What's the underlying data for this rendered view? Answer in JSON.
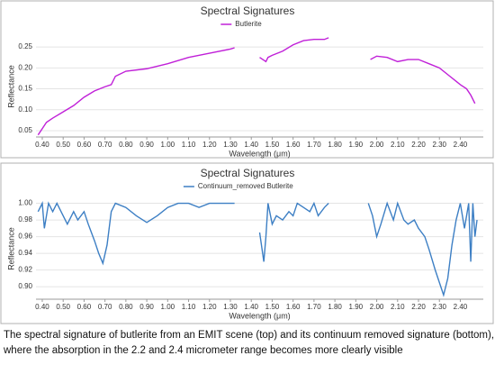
{
  "chart_data": [
    {
      "type": "line",
      "title": "Spectral Signatures",
      "x_label": "Wavelength (μm)",
      "y_label": "Reflectance",
      "legend": "top",
      "xlim": [
        0.37,
        2.51
      ],
      "ylim": [
        0.035,
        0.276
      ],
      "grid": true,
      "xticks": [
        {
          "value": 0.4,
          "label": "0.40"
        },
        {
          "value": 0.5,
          "label": "0.50"
        },
        {
          "value": 0.6,
          "label": "0.60"
        },
        {
          "value": 0.7,
          "label": "0.70"
        },
        {
          "value": 0.8,
          "label": "0.80"
        },
        {
          "value": 0.9,
          "label": "0.90"
        },
        {
          "value": 1.0,
          "label": "1.00"
        },
        {
          "value": 1.1,
          "label": "1.10"
        },
        {
          "value": 1.2,
          "label": "1.20"
        },
        {
          "value": 1.3,
          "label": "1.30"
        },
        {
          "value": 1.4,
          "label": "1.40"
        },
        {
          "value": 1.5,
          "label": "1.50"
        },
        {
          "value": 1.6,
          "label": "1.60"
        },
        {
          "value": 1.7,
          "label": "1.70"
        },
        {
          "value": 1.8,
          "label": "1.80"
        },
        {
          "value": 1.9,
          "label": "1.90"
        },
        {
          "value": 2.0,
          "label": "2.00"
        },
        {
          "value": 2.1,
          "label": "2.10"
        },
        {
          "value": 2.2,
          "label": "2.20"
        },
        {
          "value": 2.3,
          "label": "2.30"
        },
        {
          "value": 2.4,
          "label": "2.40"
        }
      ],
      "yticks": [
        {
          "value": 0.05,
          "label": "0.05"
        },
        {
          "value": 0.1,
          "label": "0.10"
        },
        {
          "value": 0.15,
          "label": "0.15"
        },
        {
          "value": 0.2,
          "label": "0.20"
        },
        {
          "value": 0.25,
          "label": "0.25"
        }
      ],
      "x": [
        0.38,
        0.4,
        0.42,
        0.45,
        0.5,
        0.55,
        0.6,
        0.65,
        0.7,
        0.73,
        0.75,
        0.8,
        0.9,
        1.0,
        1.1,
        1.2,
        1.3,
        1.32,
        1.38,
        1.44,
        1.47,
        1.48,
        1.5,
        1.55,
        1.6,
        1.65,
        1.7,
        1.75,
        1.77,
        1.87,
        1.97,
        2.0,
        2.05,
        2.1,
        2.15,
        2.2,
        2.25,
        2.3,
        2.35,
        2.4,
        2.43,
        2.45,
        2.47
      ],
      "series": [
        {
          "name": "Butlerite",
          "color": "#c020d8",
          "values": [
            0.04,
            0.055,
            0.07,
            0.08,
            0.095,
            0.11,
            0.13,
            0.145,
            0.155,
            0.16,
            0.18,
            0.192,
            0.198,
            0.21,
            0.225,
            0.235,
            0.245,
            0.248,
            null,
            0.225,
            0.215,
            0.225,
            0.23,
            0.24,
            0.255,
            0.265,
            0.268,
            0.268,
            0.272,
            null,
            0.22,
            0.228,
            0.225,
            0.215,
            0.22,
            0.22,
            0.21,
            0.2,
            0.18,
            0.16,
            0.15,
            0.135,
            0.115
          ]
        }
      ]
    },
    {
      "type": "line",
      "title": "Spectral Signatures",
      "x_label": "Wavelength (μm)",
      "y_label": "Reflectance",
      "legend": "top",
      "xlim": [
        0.37,
        2.51
      ],
      "ylim": [
        0.885,
        1.006
      ],
      "grid": true,
      "xticks": [
        {
          "value": 0.4,
          "label": "0.40"
        },
        {
          "value": 0.5,
          "label": "0.50"
        },
        {
          "value": 0.6,
          "label": "0.60"
        },
        {
          "value": 0.7,
          "label": "0.70"
        },
        {
          "value": 0.8,
          "label": "0.80"
        },
        {
          "value": 0.9,
          "label": "0.90"
        },
        {
          "value": 1.0,
          "label": "1.00"
        },
        {
          "value": 1.1,
          "label": "1.10"
        },
        {
          "value": 1.2,
          "label": "1.20"
        },
        {
          "value": 1.3,
          "label": "1.30"
        },
        {
          "value": 1.4,
          "label": "1.40"
        },
        {
          "value": 1.5,
          "label": "1.50"
        },
        {
          "value": 1.6,
          "label": "1.60"
        },
        {
          "value": 1.7,
          "label": "1.70"
        },
        {
          "value": 1.8,
          "label": "1.80"
        },
        {
          "value": 1.9,
          "label": "1.90"
        },
        {
          "value": 2.0,
          "label": "2.00"
        },
        {
          "value": 2.1,
          "label": "2.10"
        },
        {
          "value": 2.2,
          "label": "2.20"
        },
        {
          "value": 2.3,
          "label": "2.30"
        },
        {
          "value": 2.4,
          "label": "2.40"
        }
      ],
      "yticks": [
        {
          "value": 0.9,
          "label": "0.90"
        },
        {
          "value": 0.92,
          "label": "0.92"
        },
        {
          "value": 0.94,
          "label": "0.94"
        },
        {
          "value": 0.96,
          "label": "0.96"
        },
        {
          "value": 0.98,
          "label": "0.98"
        },
        {
          "value": 1.0,
          "label": "1.00"
        }
      ],
      "x": [
        0.38,
        0.4,
        0.41,
        0.43,
        0.45,
        0.47,
        0.5,
        0.52,
        0.55,
        0.57,
        0.6,
        0.62,
        0.65,
        0.67,
        0.69,
        0.71,
        0.73,
        0.75,
        0.8,
        0.85,
        0.9,
        0.95,
        1.0,
        1.05,
        1.1,
        1.15,
        1.2,
        1.25,
        1.32,
        1.38,
        1.44,
        1.46,
        1.47,
        1.48,
        1.5,
        1.52,
        1.55,
        1.58,
        1.6,
        1.62,
        1.65,
        1.68,
        1.7,
        1.72,
        1.75,
        1.77,
        1.87,
        1.96,
        1.98,
        2.0,
        2.02,
        2.05,
        2.08,
        2.1,
        2.13,
        2.15,
        2.18,
        2.2,
        2.23,
        2.25,
        2.28,
        2.3,
        2.32,
        2.34,
        2.36,
        2.38,
        2.4,
        2.42,
        2.44,
        2.45,
        2.46,
        2.47,
        2.48
      ],
      "series": [
        {
          "name": "Continuum_removed Butlerite",
          "color": "#3d7fc4",
          "values": [
            0.99,
            1.0,
            0.97,
            1.0,
            0.99,
            1.0,
            0.985,
            0.975,
            0.99,
            0.98,
            0.99,
            0.975,
            0.955,
            0.94,
            0.928,
            0.95,
            0.99,
            1.0,
            0.995,
            0.985,
            0.977,
            0.985,
            0.995,
            1.0,
            1.0,
            0.995,
            1.0,
            1.0,
            1.0,
            null,
            0.965,
            0.93,
            0.96,
            1.0,
            0.975,
            0.985,
            0.98,
            0.99,
            0.985,
            1.0,
            0.995,
            0.99,
            1.0,
            0.985,
            0.995,
            1.0,
            null,
            1.0,
            0.985,
            0.96,
            0.975,
            1.0,
            0.98,
            1.0,
            0.98,
            0.975,
            0.98,
            0.97,
            0.96,
            0.945,
            0.92,
            0.905,
            0.89,
            0.91,
            0.95,
            0.98,
            1.0,
            0.97,
            1.0,
            0.93,
            1.0,
            0.96,
            0.98
          ]
        }
      ]
    }
  ],
  "caption": "The spectral signature of butlerite from an EMIT scene (top) and its continuum removed signature (bottom), where the absorption in the 2.2 and 2.4  micrometer range becomes more clearly visible"
}
